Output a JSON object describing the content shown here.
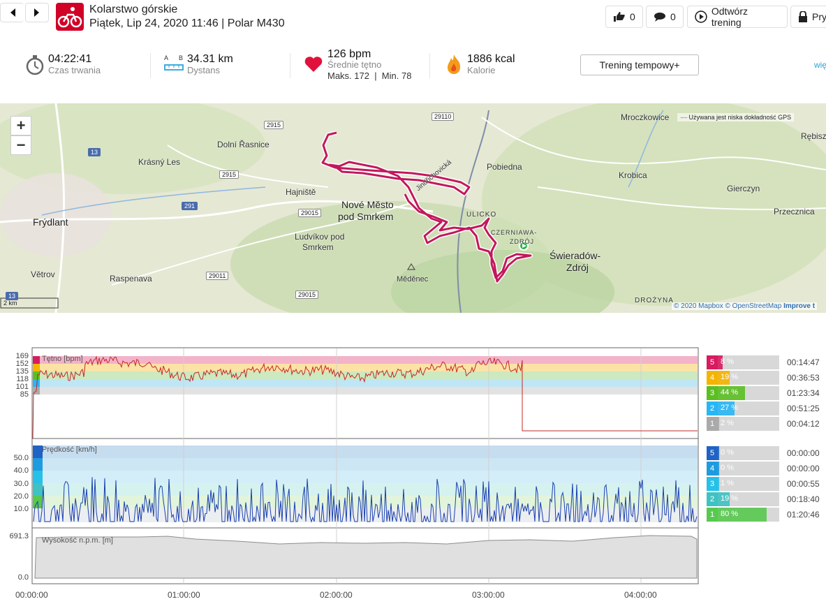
{
  "header": {
    "sport": "Kolarstwo górskie",
    "subtitle": "Piątek, Lip 24, 2020 11:46 | Polar M430",
    "likes": "0",
    "comments": "0",
    "play_label": "Odtwórz trening",
    "private_label": "Pry"
  },
  "summary": {
    "duration_value": "04:22:41",
    "duration_label": "Czas trwania",
    "distance_value": "34.31 km",
    "distance_label": "Dystans",
    "distance_a": "A",
    "distance_b": "B",
    "hr_value": "126 bpm",
    "hr_label": "Średnie tętno",
    "hr_minmax": "Maks. 172  |  Min. 78",
    "kcal_value": "1886 kcal",
    "kcal_label": "Kalorie",
    "pace_button": "Trening tempowy+",
    "more_link": "wię"
  },
  "map": {
    "gps_note": "Używana jest niska dokładność GPS",
    "attribution_1": "© 2020 Mapbox",
    "attribution_2": "© OpenStreetMap",
    "attribution_improve": "Improve t",
    "scale": "2 km",
    "zoom_in": "+",
    "zoom_out": "−",
    "places": {
      "frydlant": "Frýdlant",
      "vetrov": "Větrov",
      "raspenava": "Raspenava",
      "krasny_les": "Krásný Les",
      "dolni_rasnice": "Dolní Řasnice",
      "hajniste": "Hajniště",
      "nove_mesto_1": "Nové Město",
      "nove_mesto_2": "pod Smrkem",
      "ludvikov_1": "Ludvíkov pod",
      "ludvikov_2": "Smrkem",
      "medenec": "Měděnec",
      "pobiedna": "Pobiedna",
      "ulicko": "ULICKO",
      "czerniawa": "CZERNIAWA-",
      "czerniawa_2": "ZDRÓJ",
      "swieradow_1": "Świeradów-",
      "swieradow_2": "Zdrój",
      "mroczkowice": "Mroczkowice",
      "krobica": "Krobica",
      "gierczyn": "Gierczyn",
      "przecznica": "Przecznica",
      "rebiszow": "Rębisz",
      "drozyna": "DROŻYNA",
      "jindrich": "Jindřichovická"
    },
    "roads": [
      "2915",
      "29110",
      "13",
      "2915",
      "291",
      "29015",
      "29011",
      "29015",
      "13"
    ]
  },
  "charts": {
    "hr": {
      "title": "Tętno [bpm]",
      "ticks": [
        "169",
        "152",
        "135",
        "118",
        "101",
        "85"
      ],
      "zones": [
        {
          "num": "5",
          "pct": "8 %",
          "fraction": 0.08,
          "time": "00:14:47",
          "color": "#d81b60",
          "band": "#f3b3c9"
        },
        {
          "num": "4",
          "pct": "19 %",
          "fraction": 0.19,
          "time": "00:36:53",
          "color": "#f5b400",
          "band": "#fbe3a6"
        },
        {
          "num": "3",
          "pct": "44 %",
          "fraction": 0.44,
          "time": "01:23:34",
          "color": "#5bbf21",
          "band": "#cde9bf"
        },
        {
          "num": "2",
          "pct": "27 %",
          "fraction": 0.27,
          "time": "00:51:25",
          "color": "#29b6f6",
          "band": "#bfe6f5"
        },
        {
          "num": "1",
          "pct": "2 %",
          "fraction": 0.02,
          "time": "00:04:12",
          "color": "#aaaaaa",
          "band": "#e2e2e2"
        }
      ]
    },
    "speed": {
      "title": "Prędkość [km/h]",
      "ticks": [
        "50.0",
        "40.0",
        "30.0",
        "20.0",
        "10.0"
      ],
      "zones": [
        {
          "num": "5",
          "pct": "0 %",
          "fraction": 0.0,
          "time": "00:00:00",
          "color": "#1e63c5"
        },
        {
          "num": "4",
          "pct": "0 %",
          "fraction": 0.0,
          "time": "00:00:00",
          "color": "#1e9be0"
        },
        {
          "num": "3",
          "pct": "1 %",
          "fraction": 0.01,
          "time": "00:00:55",
          "color": "#26c0e8"
        },
        {
          "num": "2",
          "pct": "19 %",
          "fraction": 0.19,
          "time": "00:18:40",
          "color": "#3fc2c2"
        },
        {
          "num": "1",
          "pct": "80 %",
          "fraction": 0.8,
          "time": "01:20:46",
          "color": "#58c94f"
        }
      ]
    },
    "altitude": {
      "title": "Wysokość n.p.m. [m]",
      "max": "691.3",
      "min": "0.0"
    },
    "x_ticks": [
      "00:00:00",
      "01:00:00",
      "02:00:00",
      "03:00:00",
      "04:00:00"
    ]
  },
  "colors": {
    "brand": "#d10027",
    "route": "#c2185b",
    "hr_line": "#c62828",
    "speed_line": "#1a3fb0"
  }
}
